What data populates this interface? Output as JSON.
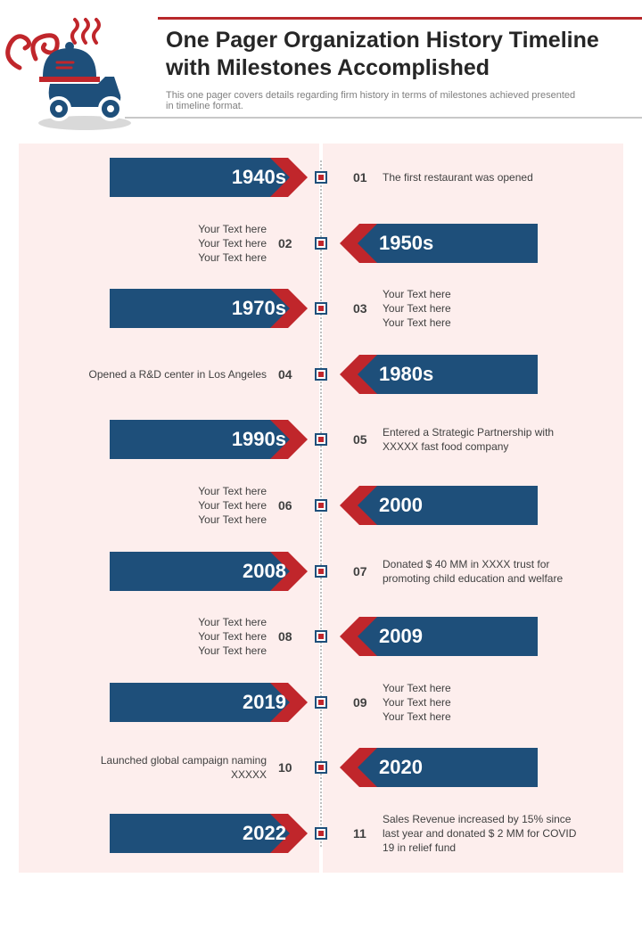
{
  "header": {
    "title": "One Pager Organization History Timeline with Milestones Accomplished",
    "subtitle": "This one pager covers details regarding firm history in terms of milestones achieved presented in timeline format."
  },
  "colors": {
    "navy": "#1e4f7a",
    "red": "#c0262b",
    "panel": "#fdeeed"
  },
  "timeline": [
    {
      "number": "01",
      "year": "1940s",
      "banner_side": "left",
      "text": "The first restaurant was opened"
    },
    {
      "number": "02",
      "year": "1950s",
      "banner_side": "right",
      "text": "Your Text here\nYour Text here\nYour Text here"
    },
    {
      "number": "03",
      "year": "1970s",
      "banner_side": "left",
      "text": "Your Text here\nYour Text here\nYour Text here"
    },
    {
      "number": "04",
      "year": "1980s",
      "banner_side": "right",
      "text": "Opened  a R&D center in Los Angeles"
    },
    {
      "number": "05",
      "year": "1990s",
      "banner_side": "left",
      "text": "Entered a Strategic Partnership with\nXXXXX  fast food company"
    },
    {
      "number": "06",
      "year": "2000",
      "banner_side": "right",
      "text": "Your Text here\nYour Text here\nYour Text here"
    },
    {
      "number": "07",
      "year": "2008",
      "banner_side": "left",
      "text": "Donated  $ 40 MM in XXXX  trust for\npromoting child education and welfare"
    },
    {
      "number": "08",
      "year": "2009",
      "banner_side": "right",
      "text": "Your Text here\nYour Text here\nYour Text here"
    },
    {
      "number": "09",
      "year": "2019",
      "banner_side": "left",
      "text": "Your Text here\nYour Text here\nYour Text here"
    },
    {
      "number": "10",
      "year": "2020",
      "banner_side": "right",
      "text": "Launched global campaign naming\nXXXXX"
    },
    {
      "number": "11",
      "year": "2022",
      "banner_side": "left",
      "text": "Sales Revenue  increased by 15% since\nlast year and donated  $ 2 MM for COVID\n19 in relief fund"
    }
  ]
}
